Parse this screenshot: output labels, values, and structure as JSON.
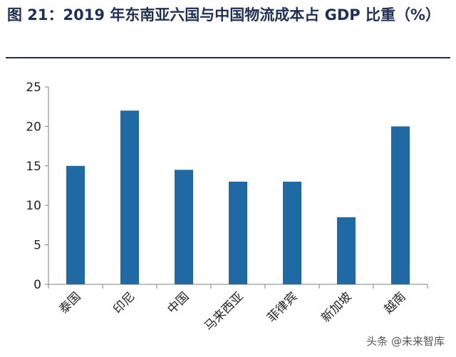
{
  "title": "图 21：2019 年东南亚六国与中国物流成本占 GDP 比重（%）",
  "watermark": "头条 @未来智库",
  "chart_data": {
    "type": "bar",
    "title": "图 21：2019 年东南亚六国与中国物流成本占 GDP 比重（%）",
    "categories": [
      "泰国",
      "印尼",
      "中国",
      "马来西亚",
      "菲律宾",
      "新加坡",
      "越南"
    ],
    "values": [
      15,
      22,
      14.5,
      13,
      13,
      8.5,
      20
    ],
    "ylim": [
      0,
      25
    ],
    "yticks": [
      0,
      5,
      10,
      15,
      20,
      25
    ],
    "xlabel": "",
    "ylabel": "",
    "grid": false,
    "bar_color": "#1f6aa5"
  }
}
